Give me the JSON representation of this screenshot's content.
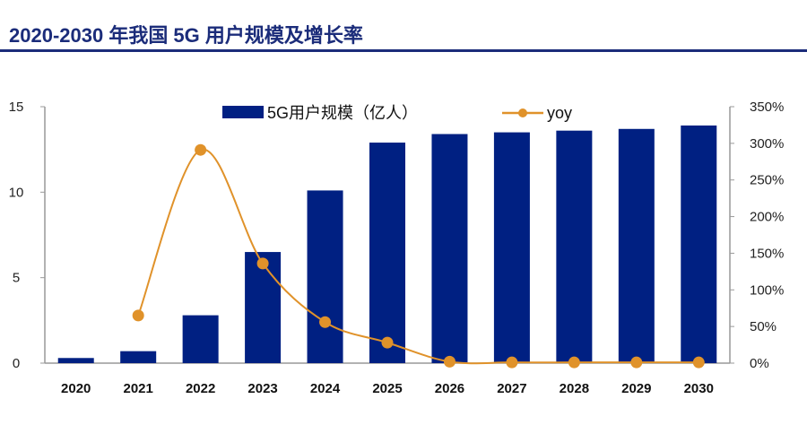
{
  "title": "2020-2030 年我国 5G 用户规模及增长率",
  "chart_data": {
    "type": "bar+line",
    "categories": [
      "2020",
      "2021",
      "2022",
      "2023",
      "2024",
      "2025",
      "2026",
      "2027",
      "2028",
      "2029",
      "2030"
    ],
    "series": [
      {
        "name": "5G用户规模（亿人）",
        "type": "bar",
        "axis": "left",
        "color": "#002082",
        "values": [
          0.3,
          0.7,
          2.8,
          6.5,
          10.1,
          12.9,
          13.4,
          13.5,
          13.6,
          13.7,
          13.9
        ]
      },
      {
        "name": "yoy",
        "type": "line",
        "axis": "right",
        "color": "#E0922A",
        "values": [
          null,
          65,
          291,
          136,
          56,
          28,
          2,
          1,
          1,
          1,
          1
        ]
      }
    ],
    "y_left": {
      "min": 0,
      "max": 15,
      "ticks": [
        "0",
        "5",
        "10",
        "15"
      ]
    },
    "y_right": {
      "min": 0,
      "max": 350,
      "ticks": [
        "0%",
        "50%",
        "100%",
        "150%",
        "200%",
        "250%",
        "300%",
        "350%"
      ]
    },
    "legend": "top-center",
    "grid": false
  }
}
